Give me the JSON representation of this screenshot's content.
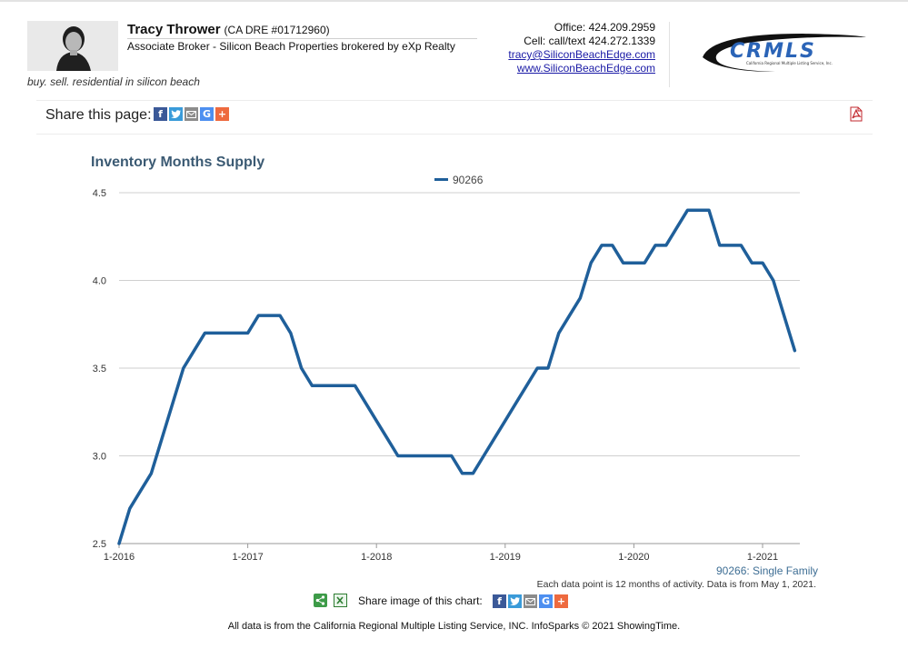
{
  "agent": {
    "name": "Tracy Thrower",
    "dre": "(CA DRE #01712960)",
    "title": "Associate Broker - Silicon Beach Properties brokered by eXp Realty",
    "tagline": "buy. sell. residential in silicon beach"
  },
  "contact": {
    "office": "Office: 424.209.2959",
    "cell": "Cell: call/text 424.272.1339",
    "email": "tracy@SiliconBeachEdge.com",
    "website": "www.SiliconBeachEdge.com"
  },
  "logo": {
    "text": "CRMLS",
    "subtitle": "California Regional Multiple Listing Service, Inc."
  },
  "share": {
    "label": "Share this page:",
    "icons": [
      "facebook-icon",
      "twitter-icon",
      "email-icon",
      "google-icon",
      "plus-icon"
    ]
  },
  "colors": {
    "series": "#1f5f9a",
    "facebook": "#3b5998",
    "twitter": "#3a9bd9",
    "email": "#8c8c8c",
    "google": "#4d8ff0",
    "plus": "#ee6a3f"
  },
  "chart_data": {
    "type": "line",
    "title": "Inventory Months Supply",
    "legend": "top-center",
    "grid": true,
    "ylim": [
      2.5,
      4.5
    ],
    "yticks": [
      "2.5",
      "3.0",
      "3.5",
      "4.0",
      "4.5"
    ],
    "xticks": [
      "1-2016",
      "1-2017",
      "1-2018",
      "1-2019",
      "1-2020",
      "1-2021"
    ],
    "series": [
      {
        "name": "90266",
        "x": [
          "2016-01",
          "2016-02",
          "2016-03",
          "2016-04",
          "2016-05",
          "2016-06",
          "2016-07",
          "2016-08",
          "2016-09",
          "2016-10",
          "2016-11",
          "2016-12",
          "2017-01",
          "2017-02",
          "2017-03",
          "2017-04",
          "2017-05",
          "2017-06",
          "2017-07",
          "2017-08",
          "2017-09",
          "2017-10",
          "2017-11",
          "2017-12",
          "2018-01",
          "2018-02",
          "2018-03",
          "2018-04",
          "2018-05",
          "2018-06",
          "2018-07",
          "2018-08",
          "2018-09",
          "2018-10",
          "2018-11",
          "2018-12",
          "2019-01",
          "2019-02",
          "2019-03",
          "2019-04",
          "2019-05",
          "2019-06",
          "2019-07",
          "2019-08",
          "2019-09",
          "2019-10",
          "2019-11",
          "2019-12",
          "2020-01",
          "2020-02",
          "2020-03",
          "2020-04",
          "2020-05",
          "2020-06",
          "2020-07",
          "2020-08",
          "2020-09",
          "2020-10",
          "2020-11",
          "2020-12",
          "2021-01",
          "2021-02",
          "2021-03",
          "2021-04"
        ],
        "values": [
          2.5,
          2.7,
          2.8,
          2.9,
          3.1,
          3.3,
          3.5,
          3.6,
          3.7,
          3.7,
          3.7,
          3.7,
          3.7,
          3.8,
          3.8,
          3.8,
          3.7,
          3.5,
          3.4,
          3.4,
          3.4,
          3.4,
          3.4,
          3.3,
          3.2,
          3.1,
          3.0,
          3.0,
          3.0,
          3.0,
          3.0,
          3.0,
          2.9,
          2.9,
          3.0,
          3.1,
          3.2,
          3.3,
          3.4,
          3.5,
          3.5,
          3.7,
          3.8,
          3.9,
          4.1,
          4.2,
          4.2,
          4.1,
          4.1,
          4.1,
          4.2,
          4.2,
          4.3,
          4.4,
          4.4,
          4.4,
          4.2,
          4.2,
          4.2,
          4.1,
          4.1,
          4.0,
          3.8,
          3.6
        ]
      }
    ]
  },
  "chart_footer": {
    "series_tag": "90266: Single Family",
    "note": "Each data point is 12 months of activity. Data is from May 1, 2021.",
    "share_image_label": "Share image of this chart:",
    "footer": "All data is from the California Regional Multiple Listing Service, INC. InfoSparks © 2021 ShowingTime."
  }
}
